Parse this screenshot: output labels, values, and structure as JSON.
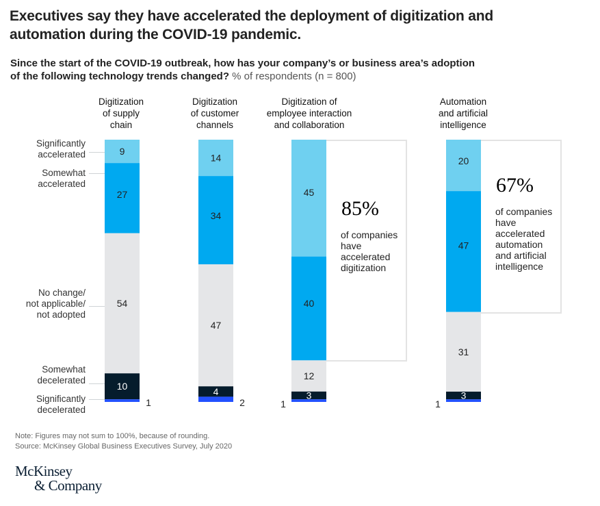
{
  "header": {
    "title_line1": "Executives say they have accelerated the deployment of digitization and",
    "title_line2": "automation during the COVID-19 pandemic.",
    "question_line1": "Since the start of the COVID-19 outbreak, how has your company’s or business area’s adoption",
    "question_line2": "of the following technology trends changed?",
    "units": " % of respondents (n = 800)"
  },
  "colors": {
    "significantly_accelerated": "#6fd0f0",
    "somewhat_accelerated": "#00a9f0",
    "no_change": "#e5e6e8",
    "somewhat_decelerated": "#051c2c",
    "significantly_decelerated": "#2251ff"
  },
  "chart_data": {
    "type": "bar",
    "stacked": true,
    "orientation": "vertical",
    "title": "Executives say they have accelerated the deployment of digitization and automation during the COVID-19 pandemic.",
    "subtitle": "Since the start of the COVID-19 outbreak, how has your company’s or business area’s adoption of the following technology trends changed? % of respondents (n = 800)",
    "xlabel": "",
    "ylabel": "% of respondents",
    "grid": false,
    "categories": [
      [
        "Digitization",
        "of supply",
        "chain"
      ],
      [
        "Digitization",
        "of customer",
        "channels"
      ],
      [
        "Digitization of",
        "employee interaction",
        "and collaboration"
      ],
      [
        "Automation",
        "and artificial",
        "intelligence"
      ]
    ],
    "series": [
      {
        "name": "Significantly accelerated",
        "label_lines": [
          "Significantly",
          "accelerated"
        ],
        "color_key": "significantly_accelerated",
        "values": [
          9,
          14,
          45,
          20
        ]
      },
      {
        "name": "Somewhat accelerated",
        "label_lines": [
          "Somewhat",
          "accelerated"
        ],
        "color_key": "somewhat_accelerated",
        "values": [
          27,
          34,
          40,
          47
        ]
      },
      {
        "name": "No change/not applicable/not adopted",
        "label_lines": [
          "No change/",
          "not applicable/",
          "not adopted"
        ],
        "color_key": "no_change",
        "values": [
          54,
          47,
          12,
          31
        ]
      },
      {
        "name": "Somewhat decelerated",
        "label_lines": [
          "Somewhat",
          "decelerated"
        ],
        "color_key": "somewhat_decelerated",
        "values": [
          10,
          4,
          3,
          3
        ]
      },
      {
        "name": "Significantly decelerated",
        "label_lines": [
          "Significantly",
          "decelerated"
        ],
        "color_key": "significantly_decelerated",
        "values": [
          1,
          2,
          1,
          1
        ]
      }
    ],
    "annotations": [
      {
        "bar_index": 2,
        "big": "85%",
        "text": [
          "of companies",
          "have",
          "accelerated",
          "digitization"
        ]
      },
      {
        "bar_index": 3,
        "big": "67%",
        "text": [
          "of companies",
          "have",
          "accelerated",
          "automation",
          "and artificial",
          "intelligence"
        ]
      }
    ]
  },
  "footer": {
    "note": "Note: Figures may not sum to 100%, because of rounding.",
    "source": "Source: McKinsey Global Business Executives Survey, July 2020",
    "logo_line1": "McKinsey",
    "logo_line2": "& Company"
  }
}
